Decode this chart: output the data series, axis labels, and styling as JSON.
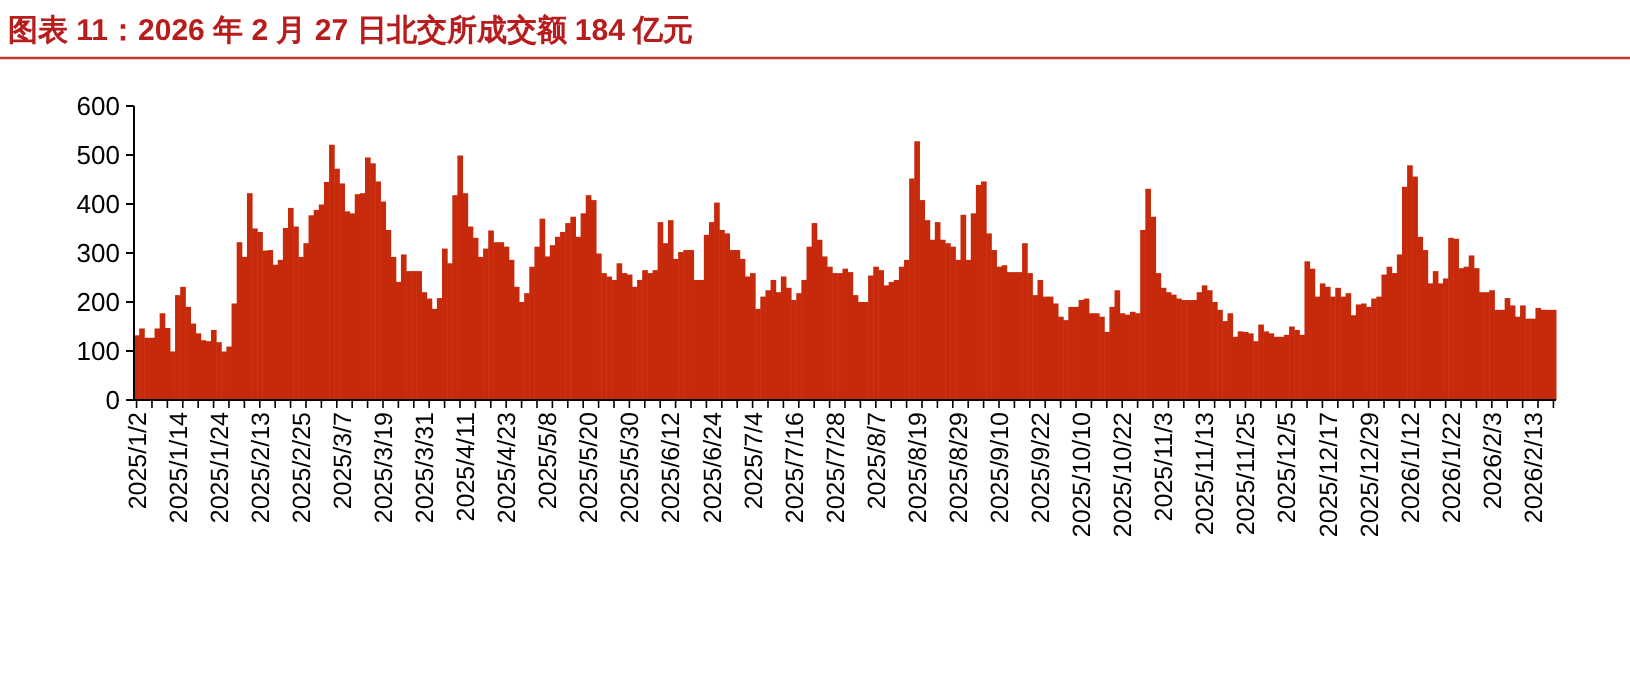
{
  "chart_data": {
    "type": "bar",
    "title": "图表 11：2026 年 2 月 27 日北交所成交额 184 亿元",
    "color": "#c62a0b",
    "ylim": [
      0,
      600
    ],
    "yticks": [
      0,
      100,
      200,
      300,
      400,
      500,
      600
    ],
    "categories": [
      "2025/1/2",
      null,
      null,
      null,
      null,
      null,
      null,
      null,
      "2025/1/14",
      null,
      null,
      null,
      null,
      null,
      null,
      null,
      "2025/1/24",
      null,
      null,
      null,
      null,
      null,
      null,
      null,
      "2025/2/13",
      null,
      null,
      null,
      null,
      null,
      null,
      null,
      "2025/2/25",
      null,
      null,
      null,
      null,
      null,
      null,
      null,
      "2025/3/7",
      null,
      null,
      null,
      null,
      null,
      null,
      null,
      "2025/3/19",
      null,
      null,
      null,
      null,
      null,
      null,
      null,
      "2025/3/31",
      null,
      null,
      null,
      null,
      null,
      null,
      null,
      "2025/4/11",
      null,
      null,
      null,
      null,
      null,
      null,
      null,
      "2025/4/23",
      null,
      null,
      null,
      null,
      null,
      null,
      null,
      "2025/5/8",
      null,
      null,
      null,
      null,
      null,
      null,
      null,
      "2025/5/20",
      null,
      null,
      null,
      null,
      null,
      null,
      null,
      "2025/5/30",
      null,
      null,
      null,
      null,
      null,
      null,
      null,
      "2025/6/12",
      null,
      null,
      null,
      null,
      null,
      null,
      null,
      "2025/6/24",
      null,
      null,
      null,
      null,
      null,
      null,
      null,
      "2025/7/4",
      null,
      null,
      null,
      null,
      null,
      null,
      null,
      "2025/7/16",
      null,
      null,
      null,
      null,
      null,
      null,
      null,
      "2025/7/28",
      null,
      null,
      null,
      null,
      null,
      null,
      null,
      "2025/8/7",
      null,
      null,
      null,
      null,
      null,
      null,
      null,
      "2025/8/19",
      null,
      null,
      null,
      null,
      null,
      null,
      null,
      "2025/8/29",
      null,
      null,
      null,
      null,
      null,
      null,
      null,
      "2025/9/10",
      null,
      null,
      null,
      null,
      null,
      null,
      null,
      "2025/9/22",
      null,
      null,
      null,
      null,
      null,
      null,
      null,
      "2025/10/10",
      null,
      null,
      null,
      null,
      null,
      null,
      null,
      "2025/10/22",
      null,
      null,
      null,
      null,
      null,
      null,
      null,
      "2025/11/3",
      null,
      null,
      null,
      null,
      null,
      null,
      null,
      "2025/11/13",
      null,
      null,
      null,
      null,
      null,
      null,
      null,
      "2025/11/25",
      null,
      null,
      null,
      null,
      null,
      null,
      null,
      "2025/12/5",
      null,
      null,
      null,
      null,
      null,
      null,
      null,
      "2025/12/17",
      null,
      null,
      null,
      null,
      null,
      null,
      null,
      "2025/12/29",
      null,
      null,
      null,
      null,
      null,
      null,
      null,
      "2026/1/12",
      null,
      null,
      null,
      null,
      null,
      null,
      null,
      "2026/1/22",
      null,
      null,
      null,
      null,
      null,
      null,
      null,
      "2026/2/3",
      null,
      null,
      null,
      null,
      null,
      null,
      null,
      "2026/2/13",
      null,
      null,
      null,
      null
    ],
    "values": [
      132,
      146,
      127,
      127,
      146,
      177,
      147,
      99,
      214,
      231,
      190,
      156,
      136,
      122,
      120,
      143,
      118,
      99,
      109,
      197,
      322,
      292,
      422,
      350,
      343,
      305,
      306,
      276,
      286,
      351,
      392,
      354,
      292,
      320,
      377,
      388,
      399,
      445,
      521,
      472,
      442,
      385,
      381,
      420,
      422,
      495,
      483,
      446,
      405,
      347,
      292,
      241,
      297,
      263,
      263,
      263,
      220,
      207,
      186,
      208,
      309,
      279,
      418,
      499,
      422,
      354,
      331,
      292,
      309,
      346,
      322,
      322,
      313,
      286,
      231,
      200,
      218,
      272,
      313,
      370,
      293,
      316,
      333,
      343,
      361,
      374,
      333,
      381,
      418,
      408,
      299,
      259,
      252,
      245,
      279,
      259,
      256,
      231,
      245,
      265,
      259,
      265,
      363,
      320,
      367,
      288,
      302,
      306,
      306,
      245,
      245,
      337,
      363,
      403,
      347,
      340,
      306,
      306,
      288,
      252,
      259,
      186,
      211,
      224,
      245,
      220,
      252,
      229,
      204,
      218,
      245,
      313,
      361,
      327,
      293,
      272,
      259,
      259,
      268,
      261,
      214,
      200,
      200,
      254,
      272,
      265,
      234,
      241,
      245,
      272,
      286,
      452,
      528,
      408,
      367,
      327,
      363,
      327,
      320,
      313,
      286,
      378,
      286,
      381,
      439,
      446,
      340,
      306,
      272,
      275,
      261,
      261,
      261,
      320,
      259,
      214,
      245,
      211,
      211,
      197,
      170,
      163,
      190,
      190,
      204,
      207,
      177,
      177,
      170,
      139,
      190,
      224,
      177,
      174,
      180,
      177,
      347,
      431,
      374,
      259,
      229,
      220,
      215,
      207,
      204,
      204,
      204,
      220,
      234,
      224,
      200,
      184,
      161,
      177,
      129,
      140,
      139,
      136,
      120,
      154,
      140,
      136,
      129,
      129,
      133,
      150,
      143,
      133,
      283,
      268,
      211,
      238,
      231,
      211,
      229,
      211,
      218,
      173,
      195,
      197,
      190,
      207,
      211,
      256,
      272,
      259,
      297,
      435,
      479,
      456,
      333,
      306,
      238,
      263,
      238,
      248,
      331,
      329,
      269,
      272,
      295,
      269,
      220,
      220,
      224,
      184,
      184,
      208,
      193,
      170,
      193,
      166,
      166,
      188,
      184,
      184,
      184
    ]
  }
}
